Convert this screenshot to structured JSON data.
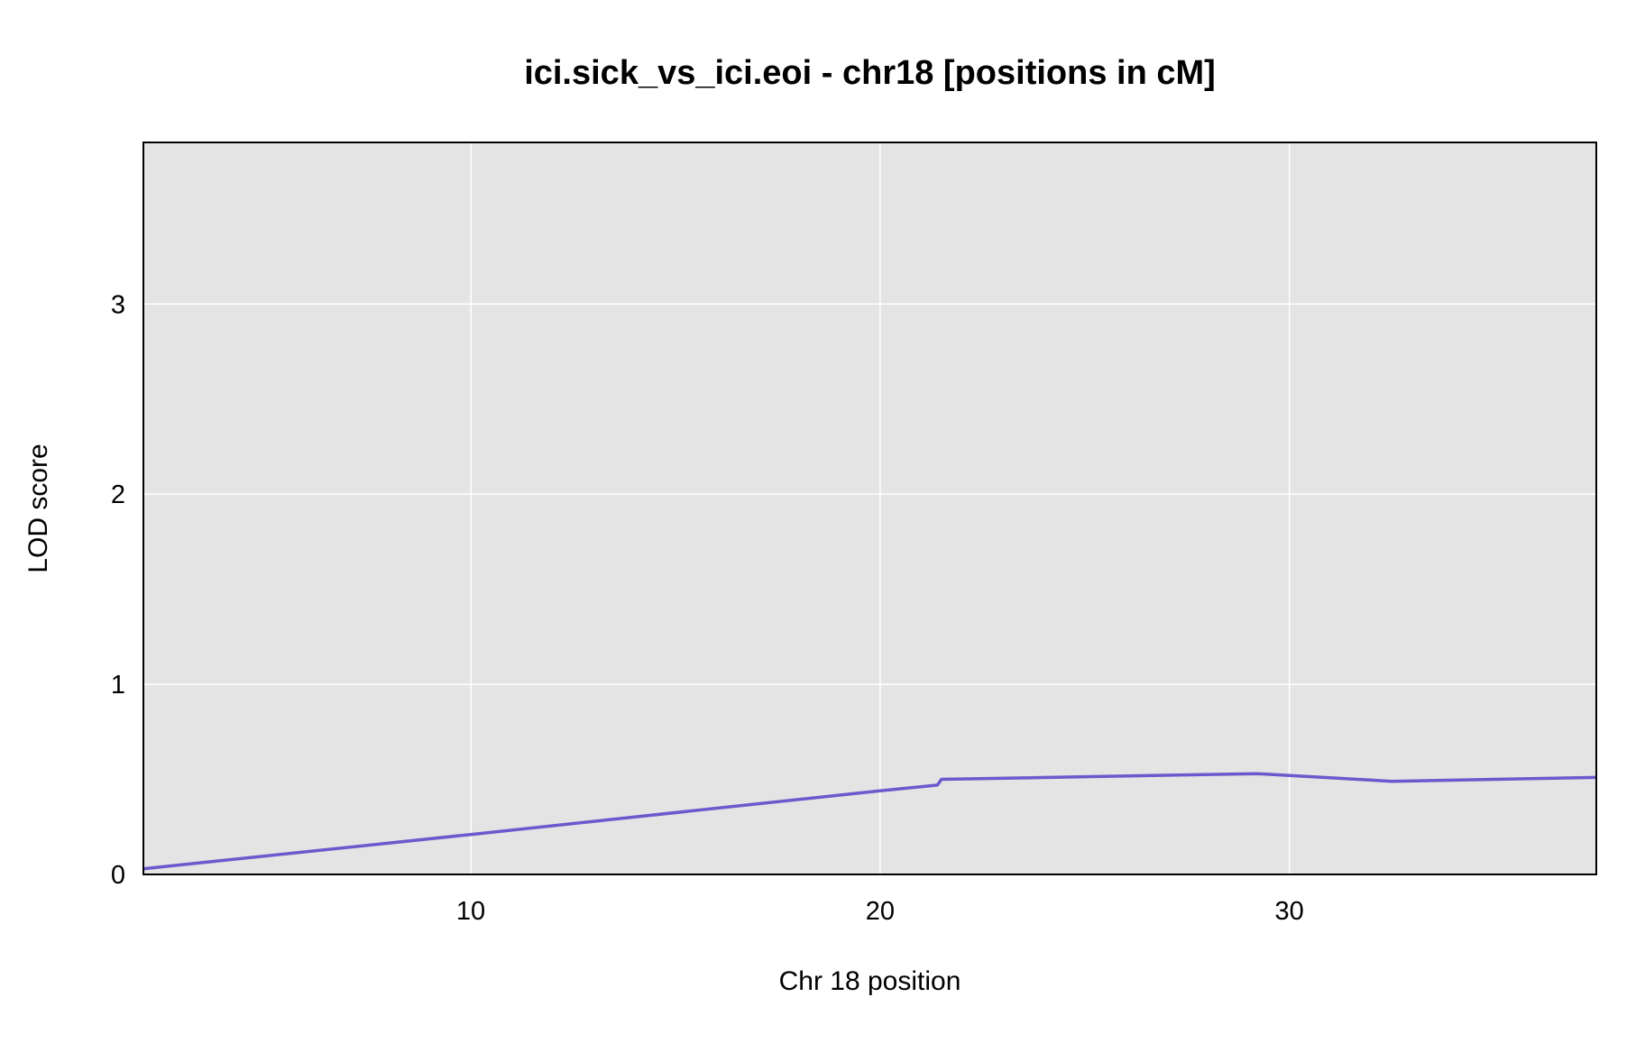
{
  "chart_data": {
    "type": "line",
    "title": "ici.sick_vs_ici.eoi - chr18 [positions in cM]",
    "xlabel": "Chr 18 position",
    "ylabel": "LOD score",
    "xlim": [
      2,
      37.5
    ],
    "ylim": [
      0,
      3.85
    ],
    "xticks": [
      10,
      20,
      30
    ],
    "yticks": [
      0,
      1,
      2,
      3
    ],
    "grid": true,
    "background_color": "#e4e4e4",
    "grid_color": "#ffffff",
    "series": [
      {
        "color": "#6a5acd",
        "x": [
          2.0,
          10.0,
          20.0,
          21.4,
          21.5,
          29.2,
          32.5,
          37.5
        ],
        "y": [
          0.03,
          0.21,
          0.44,
          0.47,
          0.5,
          0.53,
          0.49,
          0.51
        ]
      }
    ]
  }
}
